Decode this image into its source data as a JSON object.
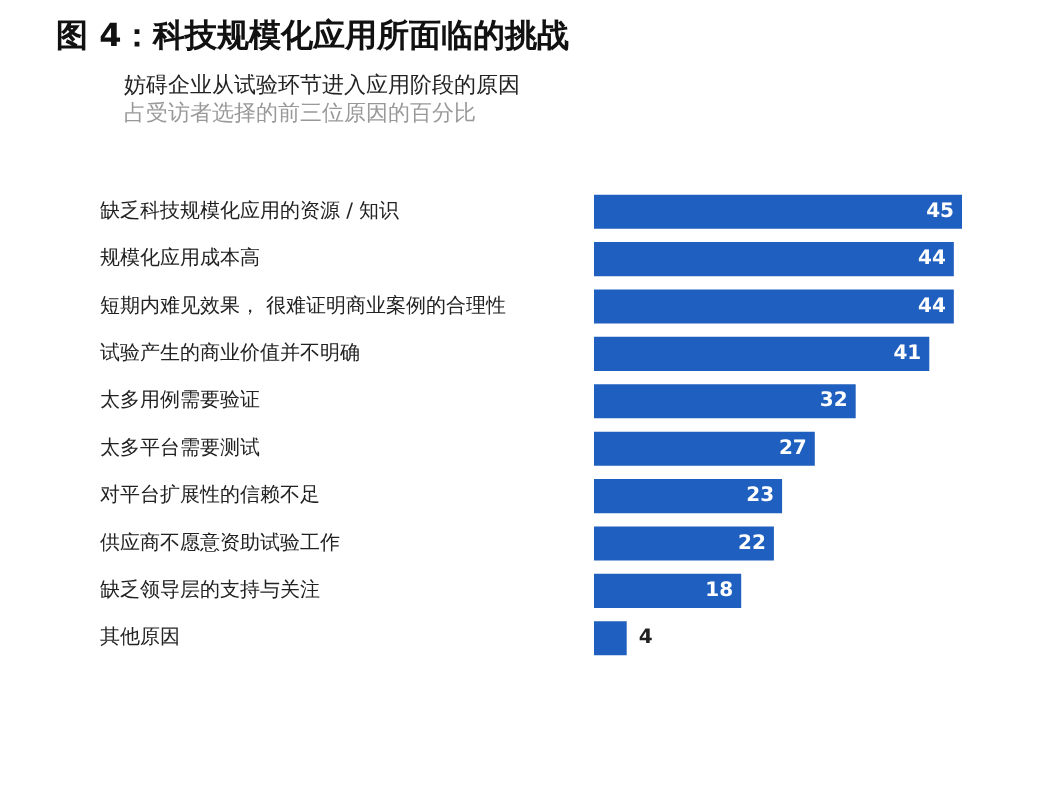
{
  "chart_data": {
    "type": "bar",
    "orientation": "horizontal",
    "title": "图 4：科技规模化应用所面临的挑战",
    "subtitle": "妨碍企业从试验环节进入应用阶段的原因",
    "annotations": [
      "占受访者选择的前三位原因的百分比"
    ],
    "categories": [
      "缺乏科技规模化应用的资源 / 知识",
      "规模化应用成本高",
      "短期内难见效果， 很难证明商业案例的合理性",
      "试验产生的商业价值并不明确",
      "太多用例需要验证",
      "太多平台需要测试",
      "对平台扩展性的信赖不足",
      "供应商不愿意资助试验工作",
      "缺乏领导层的支持与关注",
      "其他原因"
    ],
    "values": [
      45,
      44,
      44,
      41,
      32,
      27,
      23,
      22,
      18,
      4
    ],
    "color": "#1f5fbf",
    "data_labels": true,
    "legend": false
  }
}
